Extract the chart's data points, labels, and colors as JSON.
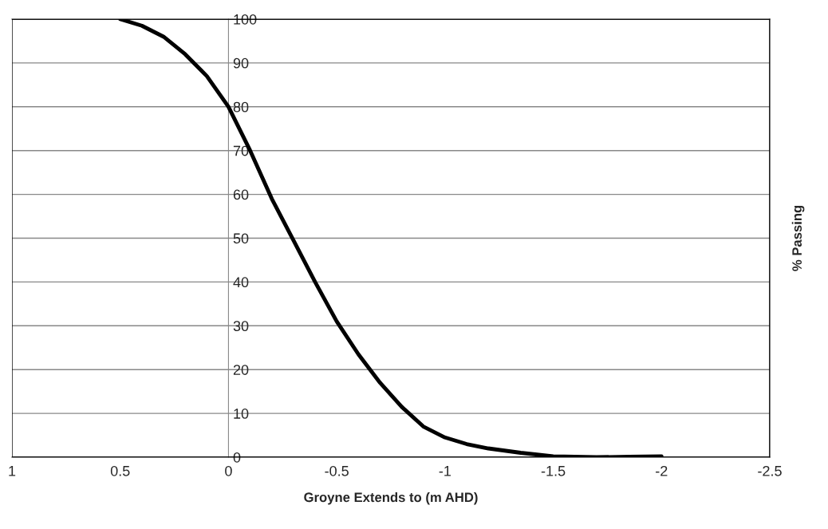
{
  "chart_data": {
    "type": "line",
    "xlabel": "Groyne Extends to (m AHD)",
    "ylabel": "% Passing",
    "x": [
      0.5,
      0.4,
      0.3,
      0.2,
      0.1,
      0,
      -0.1,
      -0.2,
      -0.3,
      -0.4,
      -0.5,
      -0.6,
      -0.7,
      -0.8,
      -0.9,
      -1,
      -1.1,
      -1.2,
      -1.35,
      -1.5,
      -1.7,
      -1.85,
      -2
    ],
    "series": [
      {
        "color": "#000000",
        "values": [
          100,
          98.5,
          96,
          92,
          87,
          80,
          70,
          59,
          49.5,
          40,
          31,
          23.5,
          17,
          11.5,
          7,
          4.5,
          3,
          2,
          1,
          0.2,
          0,
          0.1,
          0.2
        ]
      }
    ],
    "xlim": [
      1,
      -2.5
    ],
    "xticks": [
      1,
      0.5,
      0,
      -0.5,
      -1,
      -1.5,
      -2,
      -2.5
    ],
    "ylim": [
      0,
      100
    ],
    "yticks": [
      0,
      10,
      20,
      30,
      40,
      50,
      60,
      70,
      80,
      90,
      100
    ],
    "grid": "y",
    "marker": "none",
    "line_style": "solid"
  }
}
